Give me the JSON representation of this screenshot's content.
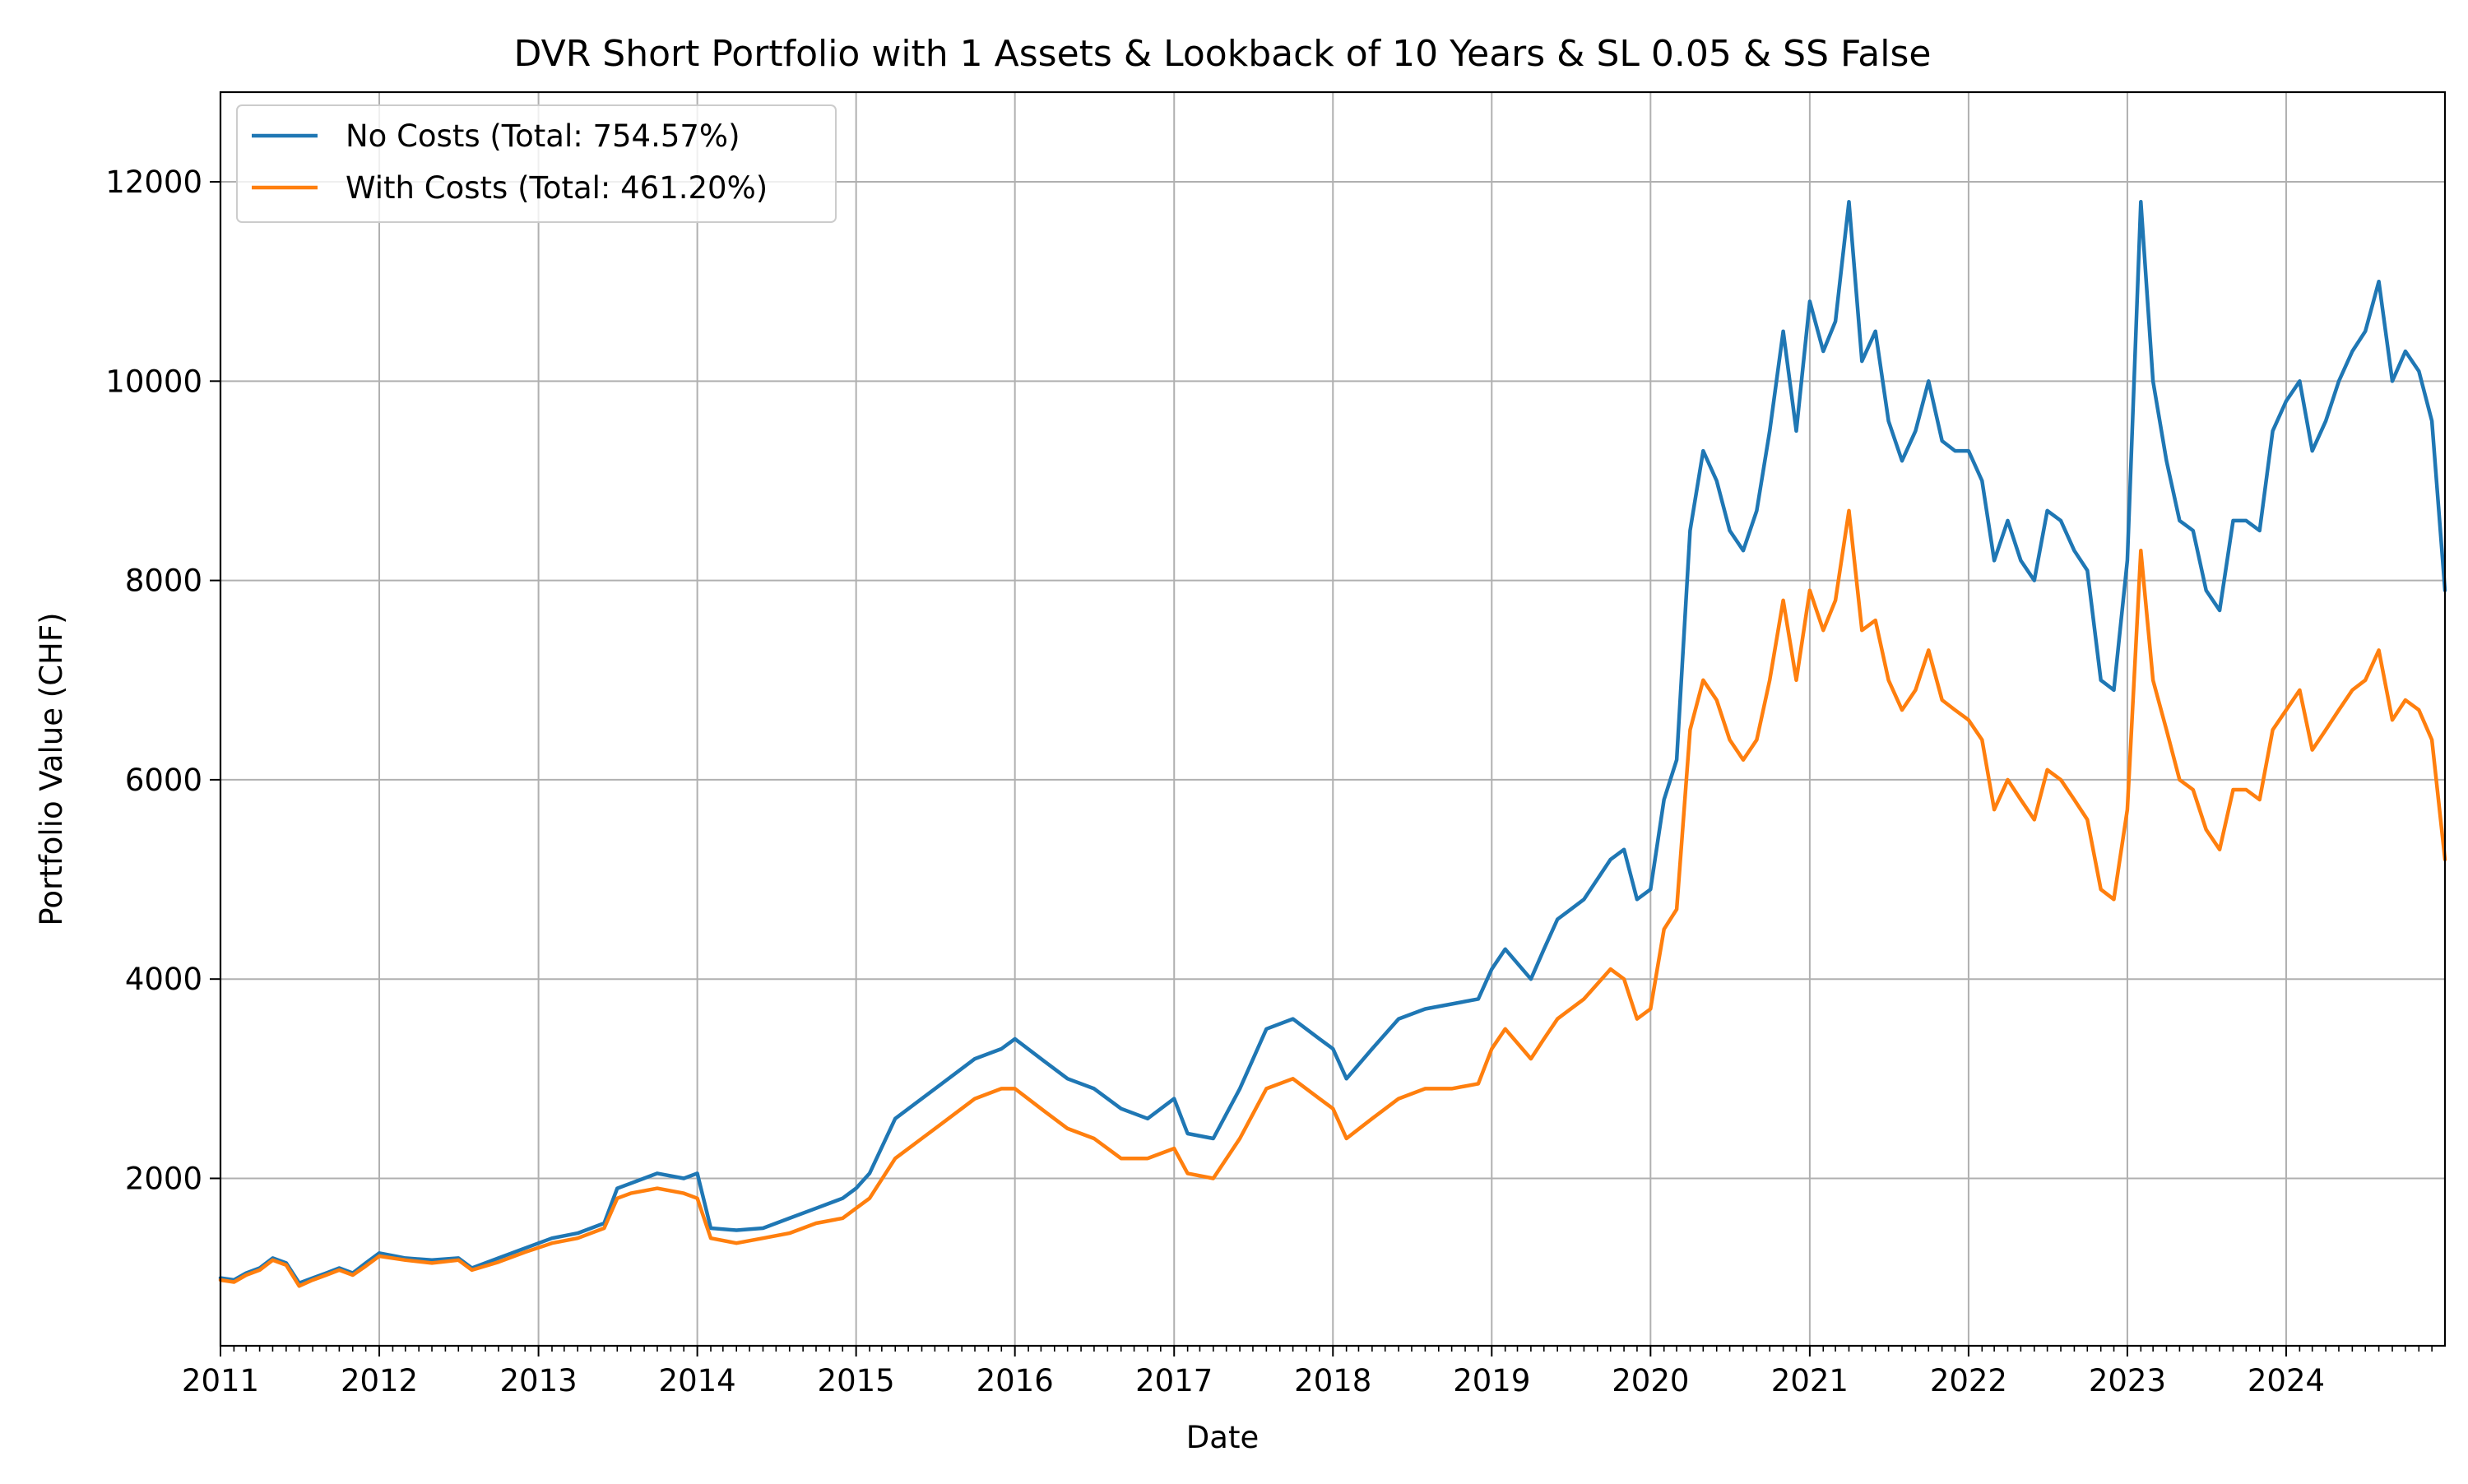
{
  "chart_data": {
    "type": "line",
    "title": "DVR Short Portfolio with 1 Assets & Lookback of 10 Years & SL 0.05 & SS False",
    "xlabel": "Date",
    "ylabel": "Portfolio Value (CHF)",
    "xlim": [
      "2011-01-01",
      "2024-12-31"
    ],
    "ylim": [
      320,
      12900
    ],
    "x_ticks": [
      "2011",
      "2012",
      "2013",
      "2014",
      "2015",
      "2016",
      "2017",
      "2018",
      "2019",
      "2020",
      "2021",
      "2022",
      "2023",
      "2024"
    ],
    "y_ticks": [
      2000,
      4000,
      6000,
      8000,
      10000,
      12000
    ],
    "grid": true,
    "legend_position": "top-left",
    "series": [
      {
        "name": "No Costs (Total: 754.57%)",
        "color": "#1f77b4",
        "x": [
          "2011-01-01",
          "2011-02-01",
          "2011-03-01",
          "2011-04-01",
          "2011-05-01",
          "2011-06-01",
          "2011-07-01",
          "2011-08-01",
          "2011-09-01",
          "2011-10-01",
          "2011-11-01",
          "2011-12-01",
          "2012-01-01",
          "2012-03-01",
          "2012-05-01",
          "2012-07-01",
          "2012-08-01",
          "2012-10-01",
          "2012-12-01",
          "2013-02-01",
          "2013-04-01",
          "2013-06-01",
          "2013-07-01",
          "2013-08-01",
          "2013-10-01",
          "2013-12-01",
          "2014-01-01",
          "2014-02-01",
          "2014-04-01",
          "2014-06-01",
          "2014-08-01",
          "2014-10-01",
          "2014-12-01",
          "2015-01-01",
          "2015-02-01",
          "2015-04-01",
          "2015-06-01",
          "2015-08-01",
          "2015-10-01",
          "2015-12-01",
          "2016-01-01",
          "2016-03-01",
          "2016-05-01",
          "2016-07-01",
          "2016-09-01",
          "2016-11-01",
          "2017-01-01",
          "2017-02-01",
          "2017-04-01",
          "2017-06-01",
          "2017-08-01",
          "2017-10-01",
          "2017-12-01",
          "2018-01-01",
          "2018-02-01",
          "2018-04-01",
          "2018-06-01",
          "2018-08-01",
          "2018-10-01",
          "2018-12-01",
          "2019-01-01",
          "2019-02-01",
          "2019-04-01",
          "2019-05-01",
          "2019-06-01",
          "2019-08-01",
          "2019-10-01",
          "2019-11-01",
          "2019-12-01",
          "2020-01-01",
          "2020-02-01",
          "2020-03-01",
          "2020-04-01",
          "2020-05-01",
          "2020-06-01",
          "2020-07-01",
          "2020-08-01",
          "2020-09-01",
          "2020-10-01",
          "2020-11-01",
          "2020-12-01",
          "2021-01-01",
          "2021-02-01",
          "2021-03-01",
          "2021-04-01",
          "2021-05-01",
          "2021-06-01",
          "2021-07-01",
          "2021-08-01",
          "2021-09-01",
          "2021-10-01",
          "2021-11-01",
          "2021-12-01",
          "2022-01-01",
          "2022-02-01",
          "2022-03-01",
          "2022-04-01",
          "2022-05-01",
          "2022-06-01",
          "2022-07-01",
          "2022-08-01",
          "2022-09-01",
          "2022-10-01",
          "2022-11-01",
          "2022-12-01",
          "2023-01-01",
          "2023-02-01",
          "2023-03-01",
          "2023-04-01",
          "2023-05-01",
          "2023-06-01",
          "2023-07-01",
          "2023-08-01",
          "2023-09-01",
          "2023-10-01",
          "2023-11-01",
          "2023-12-01",
          "2024-01-01",
          "2024-02-01",
          "2024-03-01",
          "2024-04-01",
          "2024-05-01",
          "2024-06-01",
          "2024-07-01",
          "2024-08-01",
          "2024-09-01",
          "2024-10-01",
          "2024-11-01",
          "2024-12-01",
          "2024-12-31"
        ],
        "y": [
          1000,
          980,
          1050,
          1100,
          1200,
          1150,
          950,
          1000,
          1050,
          1100,
          1050,
          1150,
          1250,
          1200,
          1180,
          1200,
          1100,
          1200,
          1300,
          1400,
          1450,
          1550,
          1900,
          1950,
          2050,
          2000,
          2050,
          1500,
          1480,
          1500,
          1600,
          1700,
          1800,
          1900,
          2050,
          2600,
          2800,
          3000,
          3200,
          3300,
          3400,
          3200,
          3000,
          2900,
          2700,
          2600,
          2800,
          2450,
          2400,
          2900,
          3500,
          3600,
          3400,
          3300,
          3000,
          3300,
          3600,
          3700,
          3750,
          3800,
          4100,
          4300,
          4000,
          4300,
          4600,
          4800,
          5200,
          5300,
          4800,
          4900,
          5800,
          6200,
          8500,
          9300,
          9000,
          8500,
          8300,
          8700,
          9500,
          10500,
          9500,
          10800,
          10300,
          10600,
          11800,
          10200,
          10500,
          9600,
          9200,
          9500,
          10000,
          9400,
          9300,
          9300,
          9000,
          8200,
          8600,
          8200,
          8000,
          8700,
          8600,
          8300,
          8100,
          7000,
          6900,
          8200,
          11800,
          10000,
          9200,
          8600,
          8500,
          7900,
          7700,
          8600,
          8600,
          8500,
          9500,
          9800,
          10000,
          9300,
          9600,
          10000,
          10300,
          10500,
          11000,
          10000,
          10300,
          10100,
          9600,
          7900
        ]
      },
      {
        "name": "With Costs (Total: 461.20%)",
        "color": "#ff7f0e",
        "x": [
          "2011-01-01",
          "2011-02-01",
          "2011-03-01",
          "2011-04-01",
          "2011-05-01",
          "2011-06-01",
          "2011-07-01",
          "2011-08-01",
          "2011-09-01",
          "2011-10-01",
          "2011-11-01",
          "2011-12-01",
          "2012-01-01",
          "2012-03-01",
          "2012-05-01",
          "2012-07-01",
          "2012-08-01",
          "2012-10-01",
          "2012-12-01",
          "2013-02-01",
          "2013-04-01",
          "2013-06-01",
          "2013-07-01",
          "2013-08-01",
          "2013-10-01",
          "2013-12-01",
          "2014-01-01",
          "2014-02-01",
          "2014-04-01",
          "2014-06-01",
          "2014-08-01",
          "2014-10-01",
          "2014-12-01",
          "2015-01-01",
          "2015-02-01",
          "2015-04-01",
          "2015-06-01",
          "2015-08-01",
          "2015-10-01",
          "2015-12-01",
          "2016-01-01",
          "2016-03-01",
          "2016-05-01",
          "2016-07-01",
          "2016-09-01",
          "2016-11-01",
          "2017-01-01",
          "2017-02-01",
          "2017-04-01",
          "2017-06-01",
          "2017-08-01",
          "2017-10-01",
          "2017-12-01",
          "2018-01-01",
          "2018-02-01",
          "2018-04-01",
          "2018-06-01",
          "2018-08-01",
          "2018-10-01",
          "2018-12-01",
          "2019-01-01",
          "2019-02-01",
          "2019-04-01",
          "2019-05-01",
          "2019-06-01",
          "2019-08-01",
          "2019-10-01",
          "2019-11-01",
          "2019-12-01",
          "2020-01-01",
          "2020-02-01",
          "2020-03-01",
          "2020-04-01",
          "2020-05-01",
          "2020-06-01",
          "2020-07-01",
          "2020-08-01",
          "2020-09-01",
          "2020-10-01",
          "2020-11-01",
          "2020-12-01",
          "2021-01-01",
          "2021-02-01",
          "2021-03-01",
          "2021-04-01",
          "2021-05-01",
          "2021-06-01",
          "2021-07-01",
          "2021-08-01",
          "2021-09-01",
          "2021-10-01",
          "2021-11-01",
          "2021-12-01",
          "2022-01-01",
          "2022-02-01",
          "2022-03-01",
          "2022-04-01",
          "2022-05-01",
          "2022-06-01",
          "2022-07-01",
          "2022-08-01",
          "2022-09-01",
          "2022-10-01",
          "2022-11-01",
          "2022-12-01",
          "2023-01-01",
          "2023-02-01",
          "2023-03-01",
          "2023-04-01",
          "2023-05-01",
          "2023-06-01",
          "2023-07-01",
          "2023-08-01",
          "2023-09-01",
          "2023-10-01",
          "2023-11-01",
          "2023-12-01",
          "2024-01-01",
          "2024-02-01",
          "2024-03-01",
          "2024-04-01",
          "2024-05-01",
          "2024-06-01",
          "2024-07-01",
          "2024-08-01",
          "2024-09-01",
          "2024-10-01",
          "2024-11-01",
          "2024-12-01",
          "2024-12-31"
        ],
        "y": [
          980,
          960,
          1030,
          1080,
          1180,
          1130,
          920,
          980,
          1030,
          1080,
          1030,
          1120,
          1220,
          1180,
          1150,
          1180,
          1080,
          1160,
          1260,
          1350,
          1400,
          1500,
          1800,
          1850,
          1900,
          1850,
          1800,
          1400,
          1350,
          1400,
          1450,
          1550,
          1600,
          1700,
          1800,
          2200,
          2400,
          2600,
          2800,
          2900,
          2900,
          2700,
          2500,
          2400,
          2200,
          2200,
          2300,
          2050,
          2000,
          2400,
          2900,
          3000,
          2800,
          2700,
          2400,
          2600,
          2800,
          2900,
          2900,
          2950,
          3300,
          3500,
          3200,
          3400,
          3600,
          3800,
          4100,
          4000,
          3600,
          3700,
          4500,
          4700,
          6500,
          7000,
          6800,
          6400,
          6200,
          6400,
          7000,
          7800,
          7000,
          7900,
          7500,
          7800,
          8700,
          7500,
          7600,
          7000,
          6700,
          6900,
          7300,
          6800,
          6700,
          6600,
          6400,
          5700,
          6000,
          5800,
          5600,
          6100,
          6000,
          5800,
          5600,
          4900,
          4800,
          5700,
          8300,
          7000,
          6500,
          6000,
          5900,
          5500,
          5300,
          5900,
          5900,
          5800,
          6500,
          6700,
          6900,
          6300,
          6500,
          6700,
          6900,
          7000,
          7300,
          6600,
          6800,
          6700,
          6400,
          5200
        ]
      }
    ]
  }
}
